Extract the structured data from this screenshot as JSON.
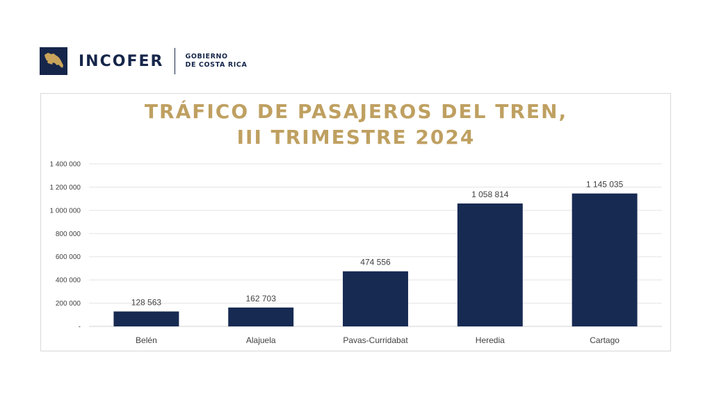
{
  "header": {
    "brand": "INCOFER",
    "gov_line1": "GOBIERNO",
    "gov_line2": "DE COSTA RICA",
    "logo_icon": "costa-rica-map-icon"
  },
  "colors": {
    "navy": "#16264a",
    "gold": "#bfa061",
    "bar": "#172a52"
  },
  "chart_data": {
    "type": "bar",
    "title_line1": "TRÁFICO DE PASAJEROS DEL TREN,",
    "title_line2": "III TRIMESTRE 2024",
    "categories": [
      "Belén",
      "Alajuela",
      "Pavas-Curridabat",
      "Heredia",
      "Cartago"
    ],
    "values": [
      128563,
      162703,
      474556,
      1058814,
      1145035
    ],
    "data_labels": [
      "128 563",
      "162 703",
      "474 556",
      "1 058 814",
      "1 145 035"
    ],
    "ylim": [
      0,
      1400000
    ],
    "yticks": [
      0,
      200000,
      400000,
      600000,
      800000,
      1000000,
      1200000,
      1400000
    ],
    "ytick_labels": [
      "-",
      "200 000",
      "400 000",
      "600 000",
      "800 000",
      "1 000 000",
      "1 200 000",
      "1 400 000"
    ],
    "grid": true,
    "legend": "none"
  }
}
